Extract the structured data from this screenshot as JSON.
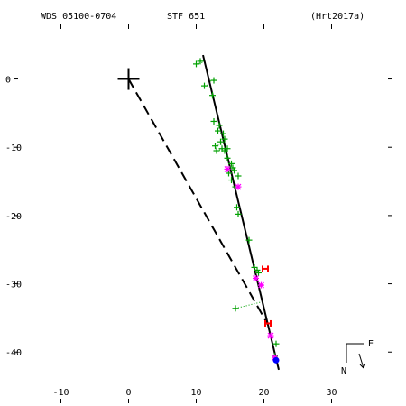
{
  "header": {
    "system_id": "WDS 05100-0704",
    "discoverer": "STF 651",
    "orbit_ref": "(Hrt2017a)"
  },
  "compass": {
    "east_label": "E",
    "north_label": "N"
  },
  "colors": {
    "visual": "#00a000",
    "interferometric": "#ff00ff",
    "speckle_red": "#ff0000",
    "recent": "#0000ff",
    "orbit": "#000000"
  },
  "chart_data": {
    "type": "scatter",
    "title": "",
    "xlabel": "",
    "ylabel": "",
    "xlim": [
      -17,
      39
    ],
    "ylim": [
      -47.5,
      8
    ],
    "x_ticks": [
      -10,
      0,
      10,
      20,
      30
    ],
    "y_ticks": [
      0,
      -10,
      -20,
      -30,
      -40
    ],
    "grid": false,
    "primary": {
      "x": 0,
      "y": 0
    },
    "orbit_line": [
      [
        11.0,
        3.5
      ],
      [
        22.2,
        -42.6
      ]
    ],
    "line_of_nodes": [
      [
        0,
        0
      ],
      [
        20.6,
        -36.0
      ]
    ],
    "visual_points": [
      [
        10.0,
        2.2
      ],
      [
        10.6,
        2.6
      ],
      [
        11.2,
        -1.0
      ],
      [
        12.6,
        -0.2
      ],
      [
        12.4,
        -2.4
      ],
      [
        12.6,
        -6.2
      ],
      [
        13.4,
        -6.8
      ],
      [
        13.2,
        -7.6
      ],
      [
        14.0,
        -8.0
      ],
      [
        13.6,
        -9.2
      ],
      [
        14.2,
        -8.8
      ],
      [
        12.8,
        -9.8
      ],
      [
        13.0,
        -10.5
      ],
      [
        14.2,
        -10.5
      ],
      [
        13.8,
        -10.2
      ],
      [
        14.6,
        -10.2
      ],
      [
        14.6,
        -11.6
      ],
      [
        15.2,
        -12.4
      ],
      [
        15.4,
        -13.0
      ],
      [
        15.6,
        -13.4
      ],
      [
        14.8,
        -13.8
      ],
      [
        16.2,
        -14.2
      ],
      [
        15.2,
        -14.8
      ],
      [
        15.8,
        -15.8
      ],
      [
        16.0,
        -18.8
      ],
      [
        16.2,
        -19.8
      ],
      [
        17.8,
        -23.6
      ],
      [
        18.6,
        -27.6
      ],
      [
        19.2,
        -28.4
      ],
      [
        19.0,
        -28.0
      ],
      [
        15.8,
        -33.6
      ],
      [
        21.8,
        -38.8
      ],
      [
        21.6,
        -40.6
      ]
    ],
    "interferometric_points": [
      [
        14.6,
        -13.2
      ],
      [
        16.2,
        -15.8
      ],
      [
        18.8,
        -29.2
      ],
      [
        19.6,
        -30.2
      ],
      [
        21.0,
        -37.6
      ],
      [
        21.6,
        -40.8
      ]
    ],
    "speckle_points": [
      [
        20.2,
        -27.8
      ],
      [
        20.6,
        -35.8
      ]
    ],
    "recent_points": [
      [
        21.8,
        -41.2
      ]
    ]
  }
}
